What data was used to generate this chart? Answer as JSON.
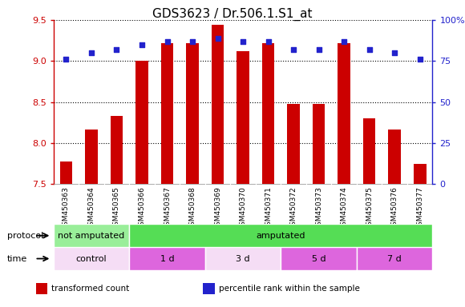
{
  "title": "GDS3623 / Dr.506.1.S1_at",
  "samples": [
    "GSM450363",
    "GSM450364",
    "GSM450365",
    "GSM450366",
    "GSM450367",
    "GSM450368",
    "GSM450369",
    "GSM450370",
    "GSM450371",
    "GSM450372",
    "GSM450373",
    "GSM450374",
    "GSM450375",
    "GSM450376",
    "GSM450377"
  ],
  "bar_values": [
    7.78,
    8.17,
    8.33,
    9.0,
    9.22,
    9.22,
    9.44,
    9.12,
    9.22,
    8.48,
    8.48,
    9.22,
    8.3,
    8.17,
    7.75
  ],
  "percentile_values": [
    76,
    80,
    82,
    85,
    87,
    87,
    89,
    87,
    87,
    82,
    82,
    87,
    82,
    80,
    76
  ],
  "ylim_left": [
    7.5,
    9.5
  ],
  "ylim_right": [
    0,
    100
  ],
  "yticks_left": [
    7.5,
    8.0,
    8.5,
    9.0,
    9.5
  ],
  "yticks_right": [
    0,
    25,
    50,
    75,
    100
  ],
  "bar_color": "#cc0000",
  "dot_color": "#2222cc",
  "left_label_color": "#cc0000",
  "right_label_color": "#2222cc",
  "plot_bg": "#ffffff",
  "xtick_bg": "#cccccc",
  "protocol_groups": [
    {
      "label": "not amputated",
      "start": 0,
      "end": 3,
      "color": "#99ee99"
    },
    {
      "label": "amputated",
      "start": 3,
      "end": 15,
      "color": "#55dd55"
    }
  ],
  "time_groups": [
    {
      "label": "control",
      "start": 0,
      "end": 3,
      "color": "#f5ddf5"
    },
    {
      "label": "1 d",
      "start": 3,
      "end": 6,
      "color": "#dd66dd"
    },
    {
      "label": "3 d",
      "start": 6,
      "end": 9,
      "color": "#f5ddf5"
    },
    {
      "label": "5 d",
      "start": 9,
      "end": 12,
      "color": "#dd66dd"
    },
    {
      "label": "7 d",
      "start": 12,
      "end": 15,
      "color": "#dd66dd"
    }
  ],
  "legend_items": [
    {
      "label": "transformed count",
      "color": "#cc0000"
    },
    {
      "label": "percentile rank within the sample",
      "color": "#2222cc"
    }
  ],
  "title_fontsize": 11,
  "tick_fontsize": 8,
  "sample_fontsize": 6.5,
  "bar_width": 0.5,
  "ybase": 7.5
}
